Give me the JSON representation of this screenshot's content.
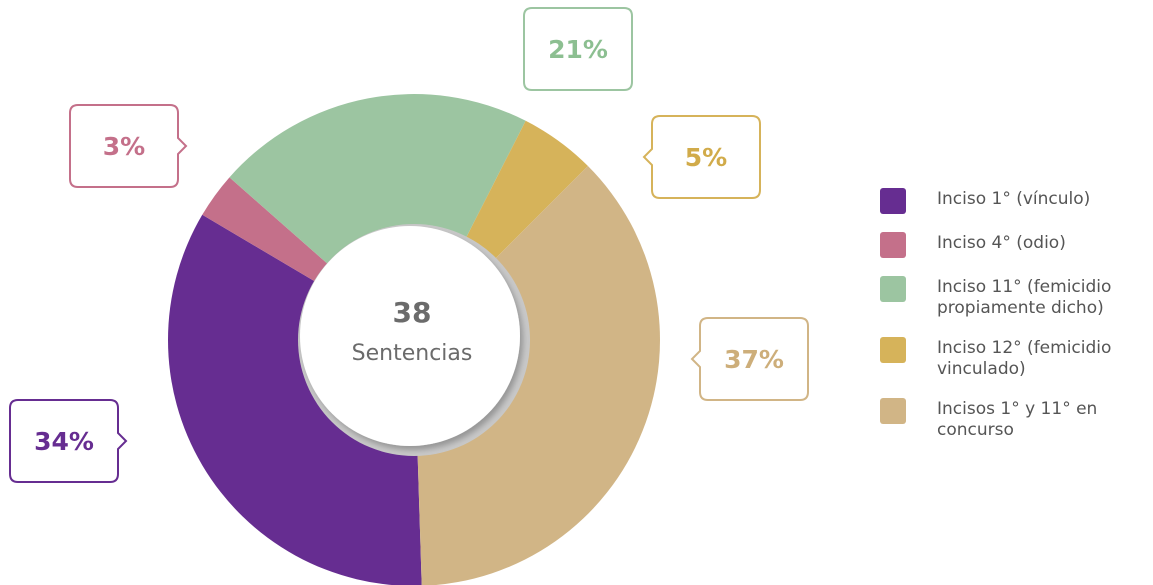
{
  "chart_data": {
    "type": "donut",
    "center_value": 38,
    "center_label": "Sentencias",
    "categories": [
      "Inciso 1° (vínculo)",
      "Inciso 4° (odio)",
      "Inciso 11° (femicidio propiamente dicho)",
      "Inciso 12° (femicidio vinculado)",
      "Incisos 1° y 11° en concurso"
    ],
    "values": [
      34,
      3,
      21,
      5,
      37
    ],
    "value_labels": [
      "34%",
      "3%",
      "21%",
      "5%",
      "37%"
    ],
    "colors": [
      "#662d91",
      "#c4708a",
      "#9cc5a1",
      "#d6b35a",
      "#d1b586"
    ],
    "legend": "right"
  }
}
